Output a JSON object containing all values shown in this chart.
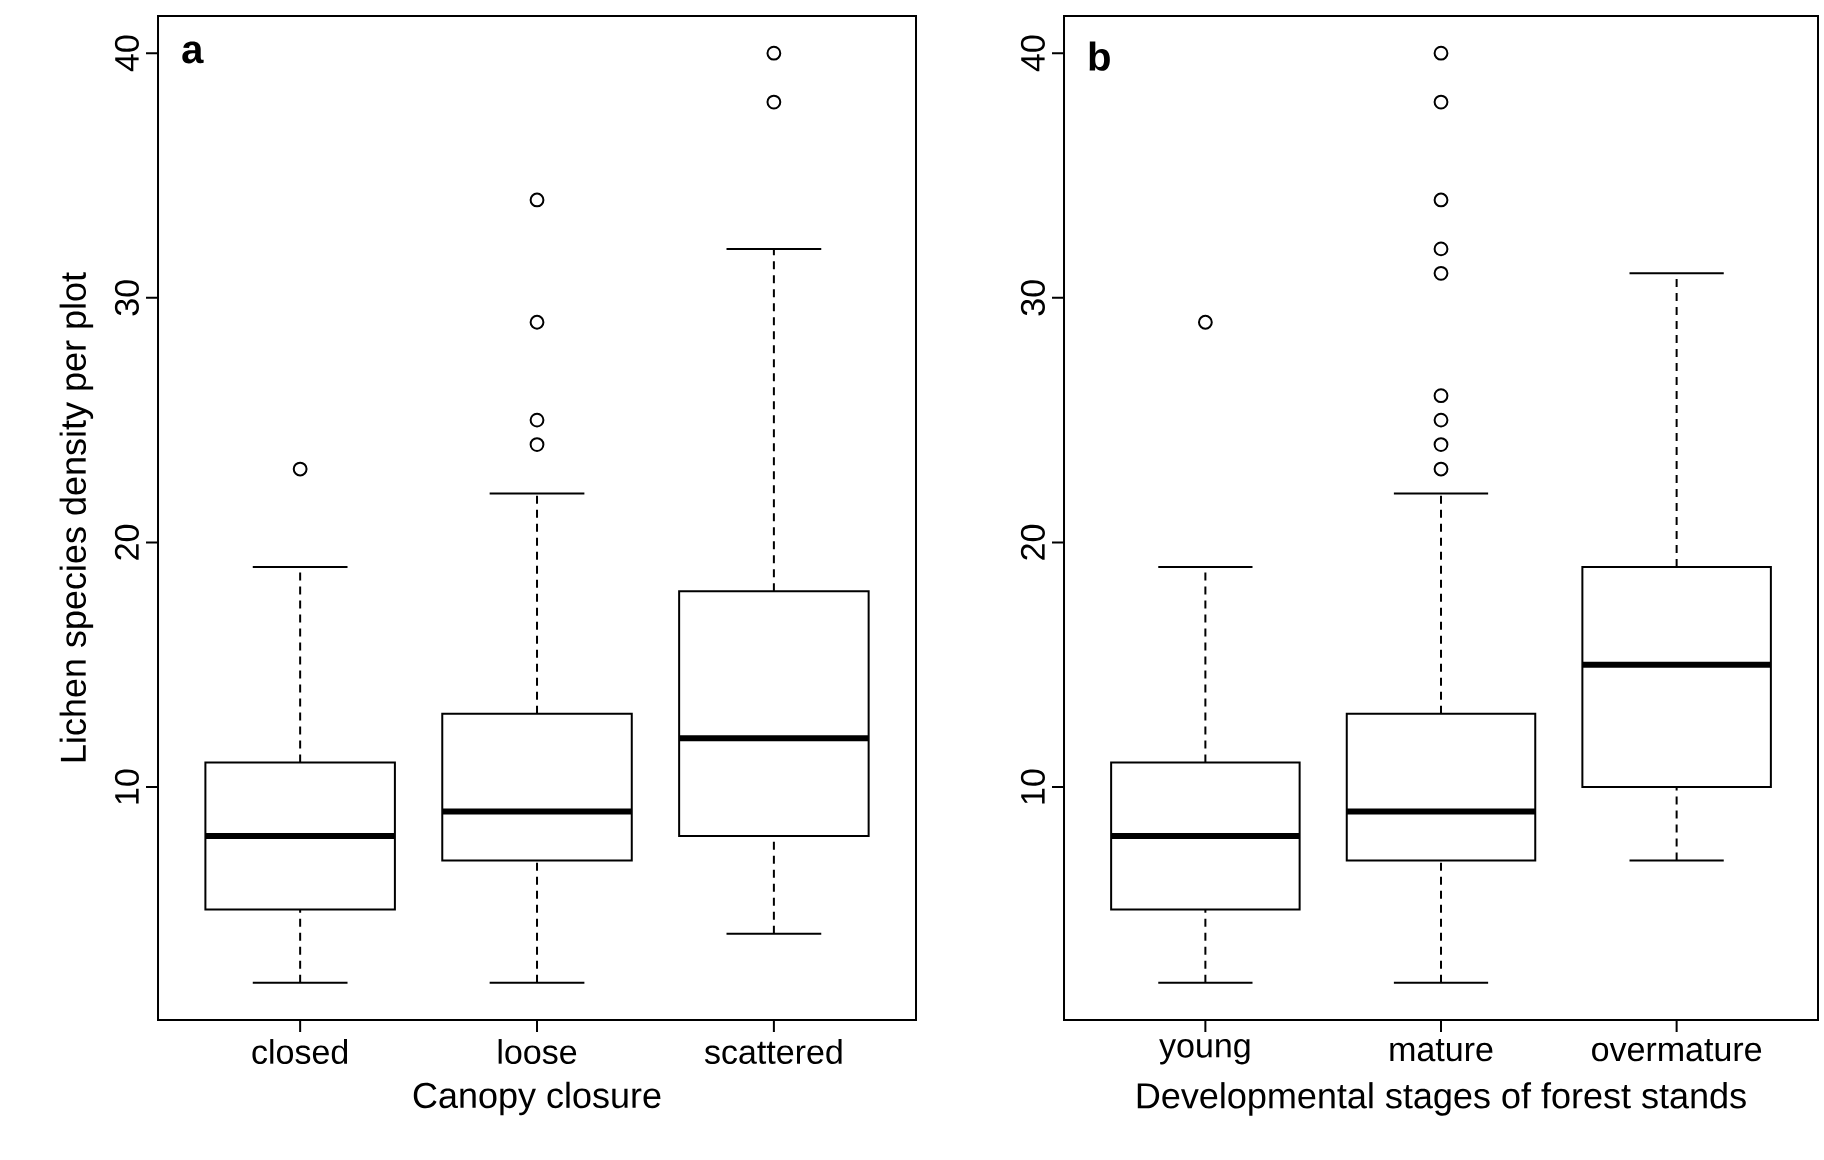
{
  "chart_data": [
    {
      "type": "box",
      "title": "a",
      "xlabel": "Canopy closure",
      "ylabel": "Lichen species density per plot",
      "categories": [
        "closed",
        "loose",
        "scattered"
      ],
      "boxes": [
        {
          "low": 2,
          "q1": 5,
          "median": 8,
          "q3": 11,
          "high": 19,
          "outliers": [
            23
          ]
        },
        {
          "low": 2,
          "q1": 7,
          "median": 9,
          "q3": 13,
          "high": 22,
          "outliers": [
            24,
            25,
            29,
            34
          ]
        },
        {
          "low": 4,
          "q1": 8,
          "median": 12,
          "q3": 18,
          "high": 32,
          "outliers": [
            38,
            40
          ]
        }
      ],
      "ylim": [
        0.48,
        41.52
      ],
      "yticks": [
        10,
        20,
        30,
        40
      ],
      "marker": "circle"
    },
    {
      "type": "box",
      "title": "b",
      "xlabel": "Developmental stages of forest stands",
      "categories": [
        "young",
        "mature",
        "overmature"
      ],
      "boxes": [
        {
          "low": 2,
          "q1": 5,
          "median": 8,
          "q3": 11,
          "high": 19,
          "outliers": [
            29
          ]
        },
        {
          "low": 2,
          "q1": 7,
          "median": 9,
          "q3": 13,
          "high": 22,
          "outliers": [
            23,
            24,
            25,
            26,
            31,
            32,
            34,
            38,
            40
          ]
        },
        {
          "low": 7,
          "q1": 10,
          "median": 15,
          "q3": 19,
          "high": 31
        }
      ],
      "ylim": [
        0.48,
        41.52
      ],
      "yticks": [
        10,
        20,
        30,
        40
      ],
      "marker": "circle"
    }
  ]
}
